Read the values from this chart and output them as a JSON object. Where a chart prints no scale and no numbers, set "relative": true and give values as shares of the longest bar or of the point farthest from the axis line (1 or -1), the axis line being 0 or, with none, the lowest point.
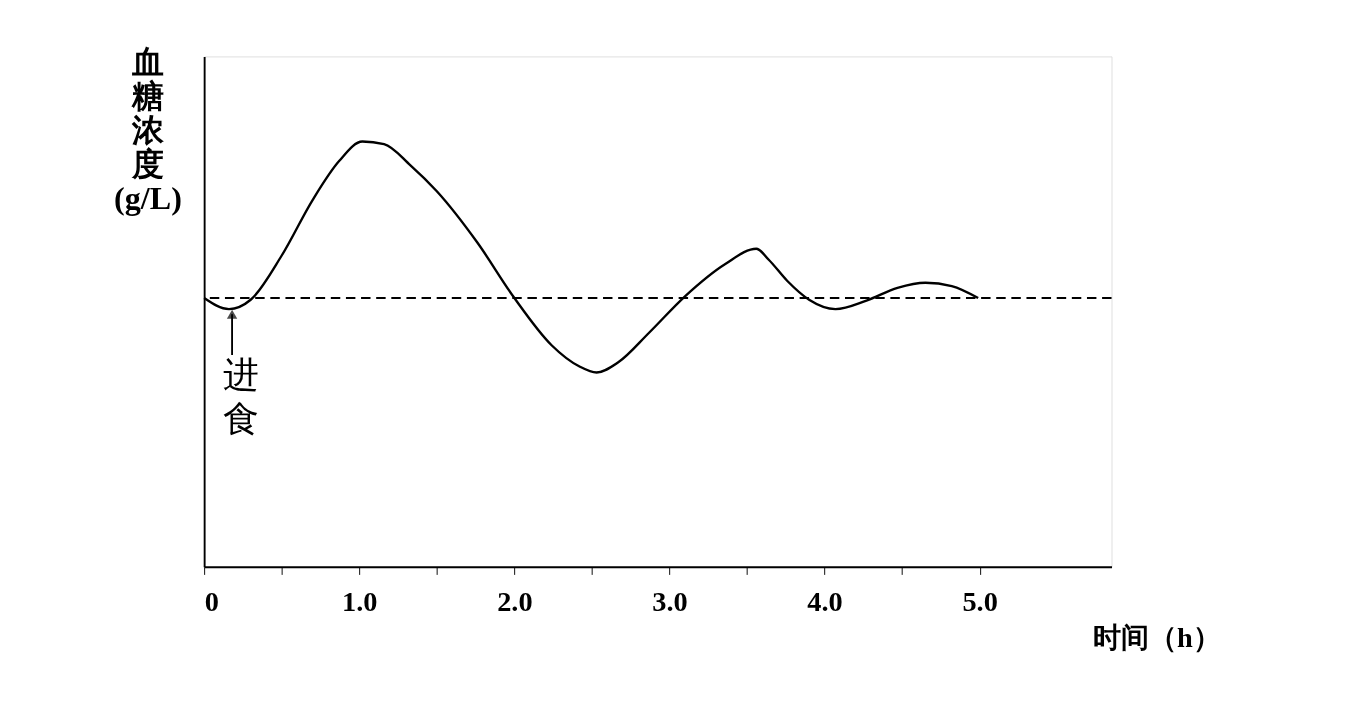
{
  "chart_data": {
    "type": "line",
    "relative": true,
    "xlabel": "时间（h）",
    "ylabel": "血糖浓度(g/L)",
    "x": [
      0,
      0.16,
      0.3,
      0.5,
      0.7,
      0.87,
      1.02,
      1.16,
      1.33,
      1.5,
      1.76,
      2.0,
      2.24,
      2.42,
      2.53,
      2.67,
      2.87,
      3.1,
      3.36,
      3.56,
      3.64,
      3.76,
      3.9,
      4.07,
      4.27,
      4.47,
      4.65,
      4.82,
      4.99
    ],
    "series": [
      {
        "color": "#000000",
        "values": [
          0.632,
          0.606,
          0.628,
          0.732,
          0.863,
          0.954,
          1.0,
          0.994,
          0.944,
          0.883,
          0.763,
          0.632,
          0.521,
          0.471,
          0.457,
          0.481,
          0.551,
          0.636,
          0.712,
          0.748,
          0.722,
          0.672,
          0.628,
          0.606,
          0.626,
          0.656,
          0.668,
          0.66,
          0.632
        ]
      }
    ],
    "xlim": [
      0,
      5.85
    ],
    "xticks": [
      0,
      {
        "value": 0.5,
        "label": null
      },
      {
        "value": 1,
        "label": "1.0"
      },
      {
        "value": 1.5,
        "label": null
      },
      {
        "value": 2,
        "label": "2.0"
      },
      {
        "value": 2.5,
        "label": null
      },
      {
        "value": 3,
        "label": "3.0"
      },
      {
        "value": 3.5,
        "label": null
      },
      {
        "value": 4,
        "label": "4.0"
      },
      {
        "value": 4.5,
        "label": null
      },
      {
        "value": 5,
        "label": "5.0"
      }
    ],
    "ref_lines": [
      {
        "axis": "y",
        "value": 0.632,
        "color": "#000000",
        "line_style": "dashed"
      }
    ],
    "annotations": [
      {
        "text": "进食",
        "x": 0.18,
        "y": 0.606
      }
    ],
    "grid": false,
    "marker": "none",
    "line_style": "solid"
  }
}
